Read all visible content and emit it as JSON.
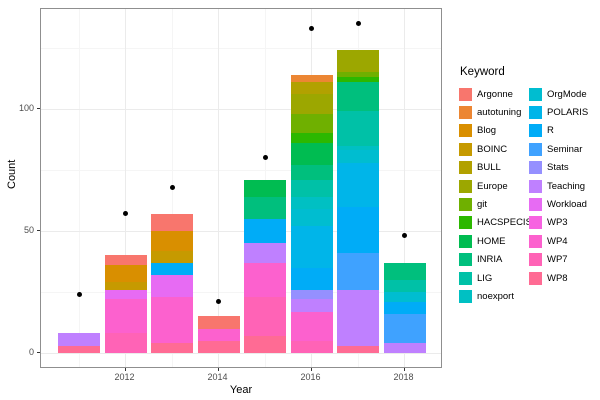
{
  "chart_data": {
    "type": "bar",
    "subtype": "stacked-bars-with-point-overlay",
    "title": "",
    "xlabel": "Year",
    "ylabel": "Count",
    "legend_title": "Keyword",
    "legend_position": "right",
    "grid": true,
    "x_tick_labels": [
      "2012",
      "2014",
      "2016",
      "2018"
    ],
    "x_major_years": [
      2012,
      2014,
      2016,
      2018
    ],
    "x_minor_years": [
      2011,
      2013,
      2015,
      2017
    ],
    "y_ticks": [
      0,
      50,
      100
    ],
    "y_tick_labels": [
      "0",
      "50",
      "100"
    ],
    "y_minor_ticks": [
      25,
      75,
      125
    ],
    "ylim": [
      -7,
      141
    ],
    "xlim": [
      2010.2,
      2018.8
    ],
    "keywords": [
      {
        "label": "Argonne",
        "color": "#F8766D"
      },
      {
        "label": "autotuning",
        "color": "#EC8633"
      },
      {
        "label": "Blog",
        "color": "#D98F00"
      },
      {
        "label": "BOINC",
        "color": "#C69A00"
      },
      {
        "label": "BULL",
        "color": "#B2A100"
      },
      {
        "label": "Europe",
        "color": "#9CA700"
      },
      {
        "label": "git",
        "color": "#6FB000"
      },
      {
        "label": "HACSPECIS",
        "color": "#2CB800"
      },
      {
        "label": "HOME",
        "color": "#00BC51"
      },
      {
        "label": "INRIA",
        "color": "#00BF7D"
      },
      {
        "label": "LIG",
        "color": "#00C1A7"
      },
      {
        "label": "noexport",
        "color": "#00C0C3"
      },
      {
        "label": "OrgMode",
        "color": "#00BDD0"
      },
      {
        "label": "POLARIS",
        "color": "#00B5E9"
      },
      {
        "label": "R",
        "color": "#00ACF7"
      },
      {
        "label": "Seminar",
        "color": "#3FA2FF"
      },
      {
        "label": "Stats",
        "color": "#9590FF"
      },
      {
        "label": "Teaching",
        "color": "#BF80FF"
      },
      {
        "label": "Workload",
        "color": "#E76BF3"
      },
      {
        "label": "WP3",
        "color": "#F763E1"
      },
      {
        "label": "WP4",
        "color": "#FC61CE"
      },
      {
        "label": "WP7",
        "color": "#FF63B6"
      },
      {
        "label": "WP8",
        "color": "#FF6B94"
      }
    ],
    "bars": [
      {
        "year": 2011,
        "total": 8,
        "segments_bottom_to_top": [
          {
            "keyword": "WP8",
            "value": 3
          },
          {
            "keyword": "Teaching",
            "value": 5
          }
        ]
      },
      {
        "year": 2012,
        "total": 40,
        "segments_bottom_to_top": [
          {
            "keyword": "WP7",
            "value": 8
          },
          {
            "keyword": "WP4",
            "value": 14
          },
          {
            "keyword": "Workload",
            "value": 4
          },
          {
            "keyword": "BOINC",
            "value": 3
          },
          {
            "keyword": "Blog",
            "value": 7
          },
          {
            "keyword": "Argonne",
            "value": 4
          }
        ]
      },
      {
        "year": 2013,
        "total": 57,
        "segments_bottom_to_top": [
          {
            "keyword": "WP8",
            "value": 4
          },
          {
            "keyword": "WP4",
            "value": 19
          },
          {
            "keyword": "Workload",
            "value": 9
          },
          {
            "keyword": "R",
            "value": 5
          },
          {
            "keyword": "BOINC",
            "value": 5
          },
          {
            "keyword": "Blog",
            "value": 8
          },
          {
            "keyword": "Argonne",
            "value": 7
          }
        ]
      },
      {
        "year": 2014,
        "total": 15,
        "segments_bottom_to_top": [
          {
            "keyword": "WP8",
            "value": 5
          },
          {
            "keyword": "WP4",
            "value": 5
          },
          {
            "keyword": "Argonne",
            "value": 5
          }
        ]
      },
      {
        "year": 2015,
        "total": 71,
        "segments_bottom_to_top": [
          {
            "keyword": "WP8",
            "value": 7
          },
          {
            "keyword": "WP7",
            "value": 16
          },
          {
            "keyword": "WP4",
            "value": 14
          },
          {
            "keyword": "Teaching",
            "value": 8
          },
          {
            "keyword": "R",
            "value": 10
          },
          {
            "keyword": "INRIA",
            "value": 9
          },
          {
            "keyword": "HOME",
            "value": 7
          }
        ]
      },
      {
        "year": 2016,
        "total": 114,
        "segments_bottom_to_top": [
          {
            "keyword": "WP7",
            "value": 5
          },
          {
            "keyword": "WP4",
            "value": 12
          },
          {
            "keyword": "Teaching",
            "value": 5
          },
          {
            "keyword": "Stats",
            "value": 4
          },
          {
            "keyword": "R",
            "value": 9
          },
          {
            "keyword": "POLARIS",
            "value": 17
          },
          {
            "keyword": "OrgMode",
            "value": 7
          },
          {
            "keyword": "noexport",
            "value": 5
          },
          {
            "keyword": "LIG",
            "value": 7
          },
          {
            "keyword": "INRIA",
            "value": 6
          },
          {
            "keyword": "HOME",
            "value": 9
          },
          {
            "keyword": "HACSPECIS",
            "value": 4
          },
          {
            "keyword": "git",
            "value": 8
          },
          {
            "keyword": "Europe",
            "value": 8
          },
          {
            "keyword": "BULL",
            "value": 5
          },
          {
            "keyword": "autotuning",
            "value": 3
          }
        ]
      },
      {
        "year": 2017,
        "total": 124,
        "segments_bottom_to_top": [
          {
            "keyword": "WP8",
            "value": 3
          },
          {
            "keyword": "Teaching",
            "value": 23
          },
          {
            "keyword": "Seminar",
            "value": 15
          },
          {
            "keyword": "R",
            "value": 19
          },
          {
            "keyword": "POLARIS",
            "value": 18
          },
          {
            "keyword": "OrgMode",
            "value": 5
          },
          {
            "keyword": "noexport",
            "value": 2
          },
          {
            "keyword": "LIG",
            "value": 14
          },
          {
            "keyword": "INRIA",
            "value": 12
          },
          {
            "keyword": "HACSPECIS",
            "value": 2
          },
          {
            "keyword": "git",
            "value": 2
          },
          {
            "keyword": "Europe",
            "value": 9
          }
        ]
      },
      {
        "year": 2018,
        "total": 37,
        "segments_bottom_to_top": [
          {
            "keyword": "Teaching",
            "value": 4
          },
          {
            "keyword": "Seminar",
            "value": 12
          },
          {
            "keyword": "R",
            "value": 5
          },
          {
            "keyword": "OrgMode",
            "value": 4
          },
          {
            "keyword": "LIG",
            "value": 5
          },
          {
            "keyword": "INRIA",
            "value": 7
          }
        ]
      }
    ],
    "points": [
      {
        "year": 2011,
        "value": 24
      },
      {
        "year": 2012,
        "value": 57
      },
      {
        "year": 2013,
        "value": 68
      },
      {
        "year": 2014,
        "value": 21
      },
      {
        "year": 2015,
        "value": 80
      },
      {
        "year": 2016,
        "value": 133
      },
      {
        "year": 2017,
        "value": 135
      },
      {
        "year": 2018,
        "value": 48
      }
    ]
  }
}
